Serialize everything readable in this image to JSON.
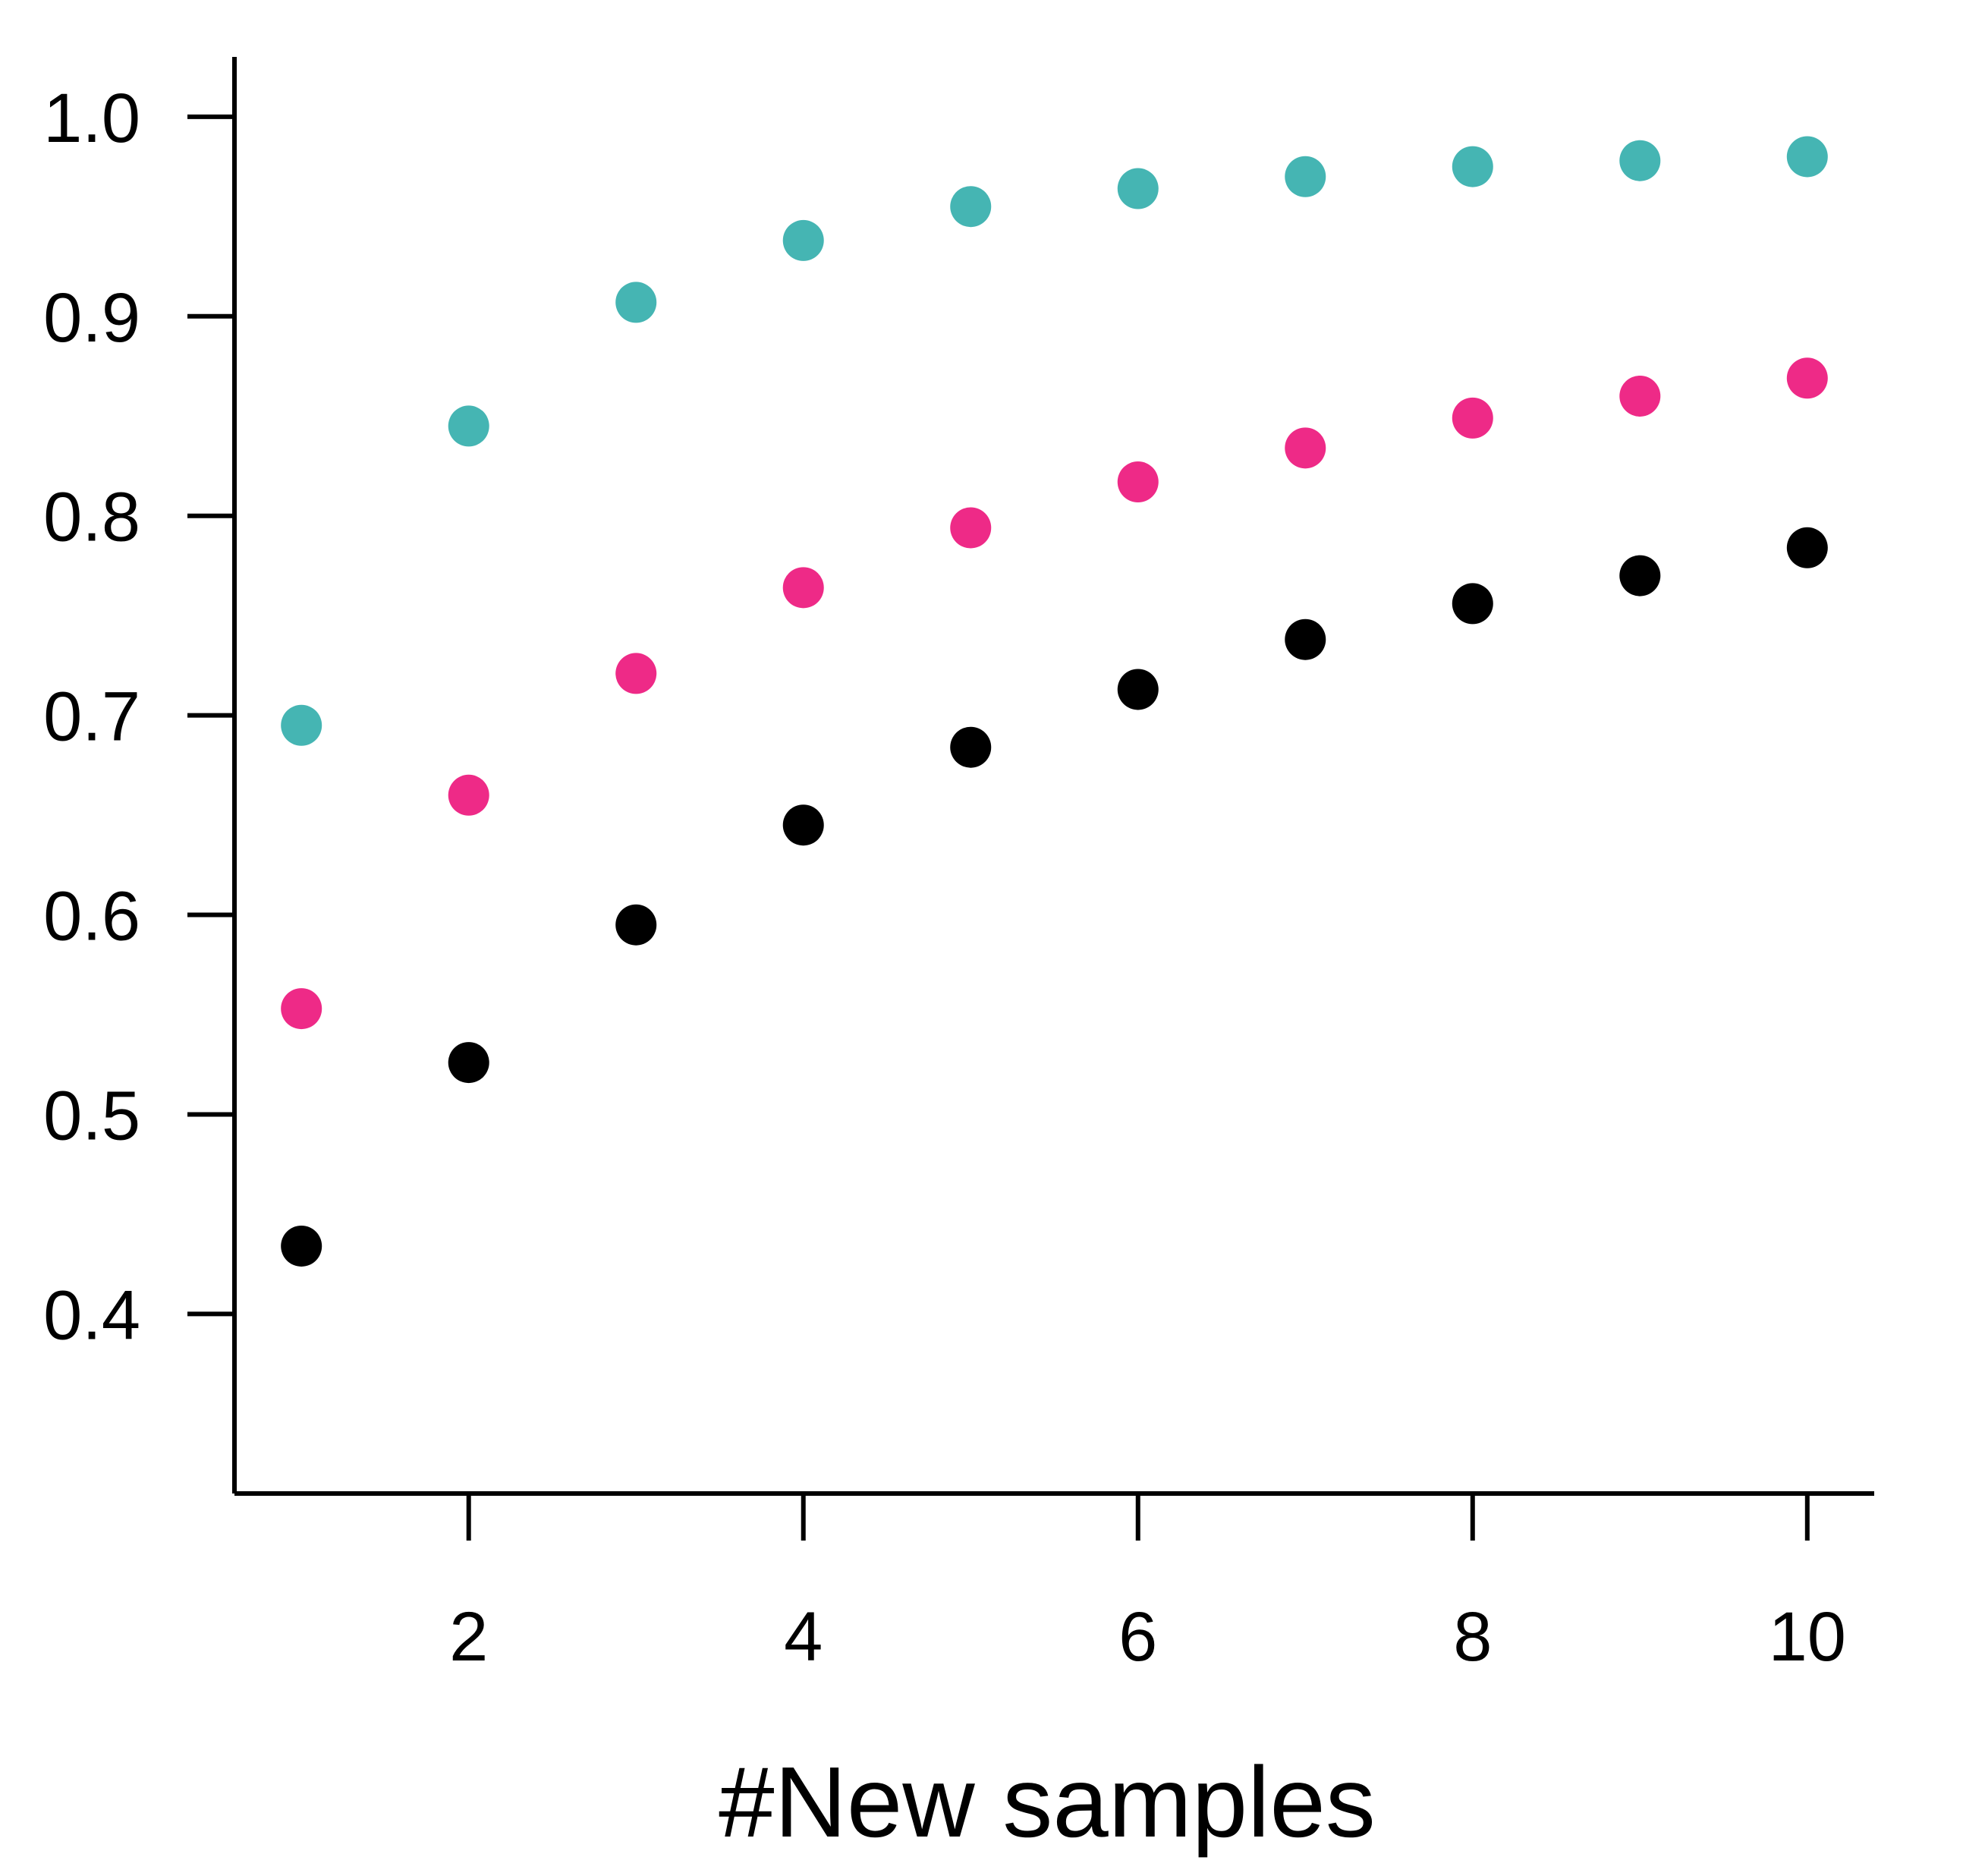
{
  "chart_data": {
    "type": "scatter",
    "title": "",
    "xlabel": "#New samples",
    "ylabel": "",
    "xlim": [
      0.6,
      10.4
    ],
    "ylim": [
      0.31,
      1.03
    ],
    "x_ticks": [
      2,
      4,
      6,
      8,
      10
    ],
    "y_ticks": [
      0.4,
      0.5,
      0.6,
      0.7,
      0.8,
      0.9,
      1.0
    ],
    "x_tick_labels": [
      "2",
      "4",
      "6",
      "8",
      "10"
    ],
    "y_tick_labels": [
      "0.4",
      "0.5",
      "0.6",
      "0.7",
      "0.8",
      "0.9",
      "1.0"
    ],
    "grid": false,
    "legend": "none",
    "x": [
      1,
      2,
      3,
      4,
      5,
      6,
      7,
      8,
      9,
      10
    ],
    "series": [
      {
        "color": "#45b5b3",
        "values": [
          0.695,
          0.845,
          0.907,
          0.938,
          0.955,
          0.964,
          0.97,
          0.975,
          0.978,
          0.98
        ]
      },
      {
        "color": "#ee2a87",
        "values": [
          0.553,
          0.66,
          0.721,
          0.764,
          0.794,
          0.817,
          0.834,
          0.849,
          0.86,
          0.869
        ]
      },
      {
        "color": "#000000",
        "values": [
          0.434,
          0.526,
          0.595,
          0.645,
          0.684,
          0.713,
          0.738,
          0.756,
          0.77,
          0.784
        ]
      }
    ]
  }
}
